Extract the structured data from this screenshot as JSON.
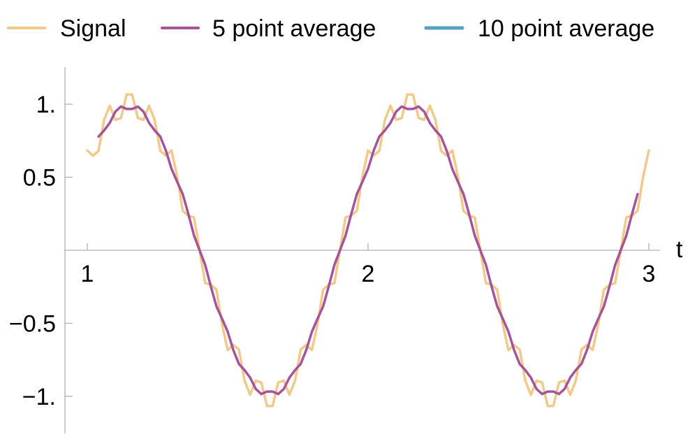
{
  "chart_data": {
    "type": "line",
    "xlabel": "t",
    "ylabel": "",
    "title": "",
    "xlim": [
      1,
      3
    ],
    "ylim": [
      -1.25,
      1.25
    ],
    "x_ticks": [
      {
        "value": 1,
        "label": "1"
      },
      {
        "value": 2,
        "label": "2"
      },
      {
        "value": 3,
        "label": "3"
      }
    ],
    "y_ticks": [
      {
        "value": 1,
        "label": "1."
      },
      {
        "value": 0.5,
        "label": "0.5"
      },
      {
        "value": -0.5,
        "label": "−0.5"
      },
      {
        "value": -1,
        "label": "−1."
      }
    ],
    "grid": false,
    "legend_position": "top",
    "model": {
      "base": "sin(2π·(t − 0.9))",
      "noise": "0.1·sin(2π·13·(t − 0.9))",
      "sample_step": 0.02
    },
    "series": [
      {
        "name": "Signal",
        "color": "#f0c98b",
        "stroke_width": 3.5,
        "window": 1
      },
      {
        "name": "5 point average",
        "color": "#a5539b",
        "stroke_width": 3.5,
        "window": 5
      },
      {
        "name": "10 point average",
        "color": "#5b9fc7",
        "stroke_width": 4.5,
        "window": 10
      }
    ]
  }
}
